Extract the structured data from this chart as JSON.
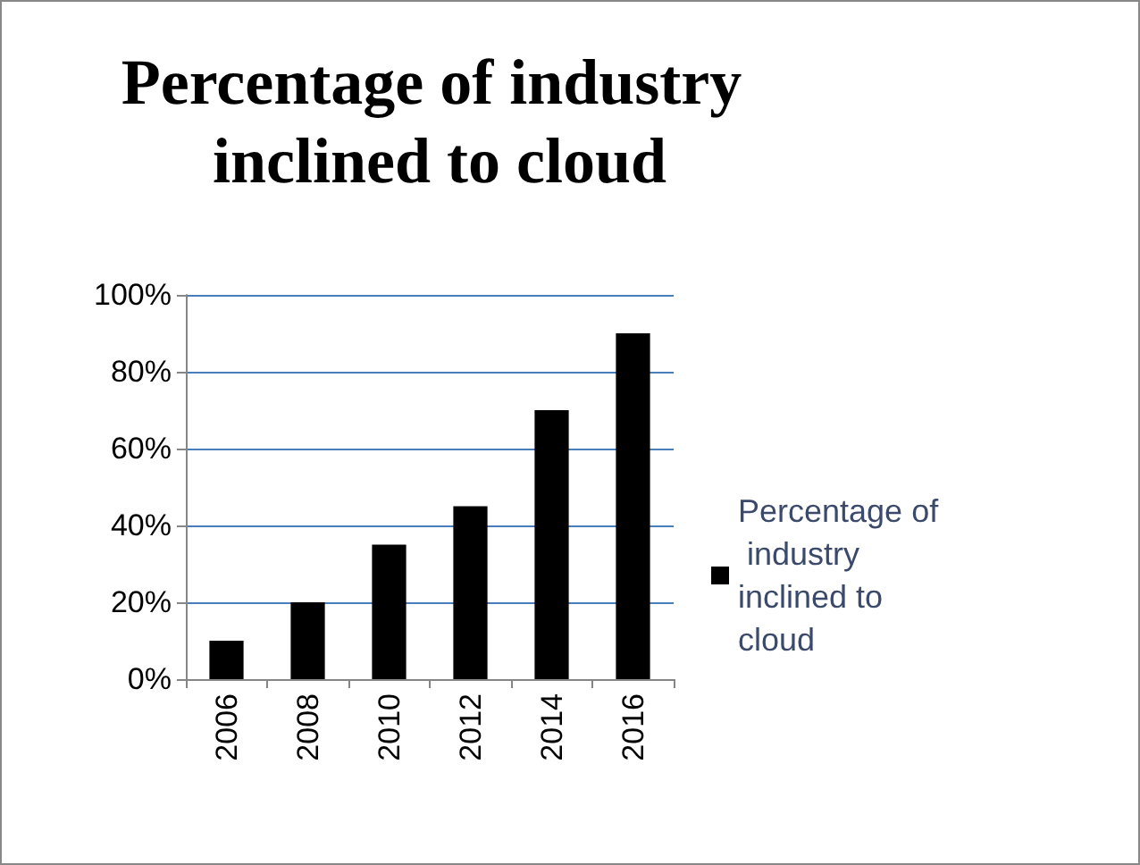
{
  "chart_data": {
    "type": "bar",
    "title": "Percentage of industry inclined to cloud",
    "categories": [
      "2006",
      "2008",
      "2010",
      "2012",
      "2014",
      "2016"
    ],
    "series": [
      {
        "name": "Percentage of industry inclined to cloud",
        "color": "#000000",
        "values": [
          10,
          20,
          35,
          45,
          70,
          90
        ]
      }
    ],
    "ylim": [
      0,
      100
    ],
    "yticks": [
      {
        "value": 0,
        "label": "0%"
      },
      {
        "value": 20,
        "label": "20%"
      },
      {
        "value": 40,
        "label": "40%"
      },
      {
        "value": 60,
        "label": "60%"
      },
      {
        "value": 80,
        "label": "80%"
      },
      {
        "value": 100,
        "label": "100%"
      }
    ],
    "grid": "y",
    "legend": "right"
  }
}
